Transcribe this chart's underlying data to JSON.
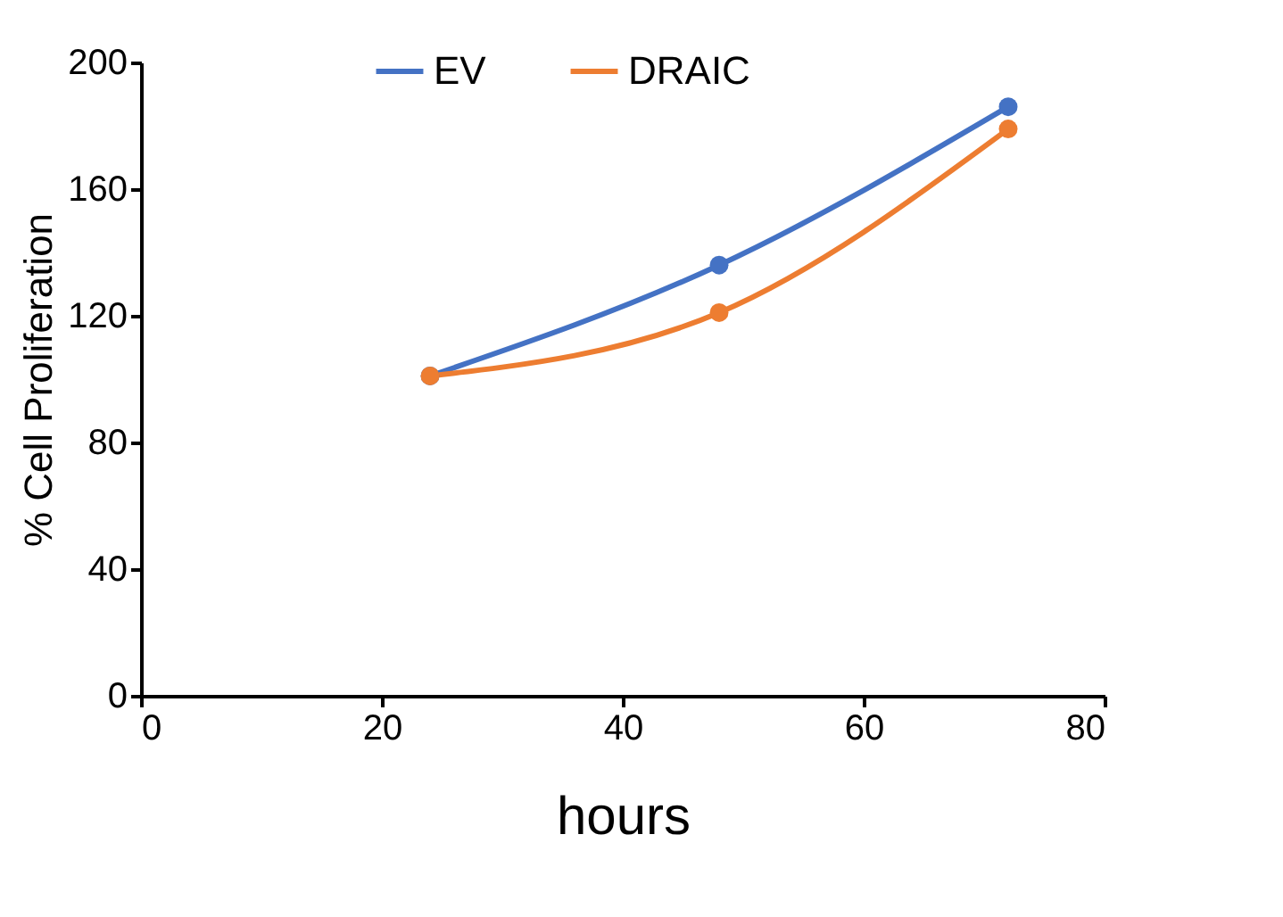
{
  "chart_data": {
    "type": "line",
    "xlabel": "hours",
    "ylabel": "% Cell Proliferation",
    "x": [
      24,
      48,
      72
    ],
    "series": [
      {
        "name": "EV",
        "color": "#4472c4",
        "values": [
          101,
          136,
          186
        ]
      },
      {
        "name": "DRAIC",
        "color": "#ed7d31",
        "values": [
          101,
          121,
          179
        ]
      }
    ],
    "xlim": [
      0,
      80
    ],
    "xticks": [
      0,
      20,
      40,
      60,
      80
    ],
    "ylim": [
      0,
      200
    ],
    "yticks": [
      0,
      40,
      80,
      120,
      160,
      200
    ],
    "grid": false,
    "legend": "top",
    "marker": "circle",
    "line_style": "solid"
  }
}
